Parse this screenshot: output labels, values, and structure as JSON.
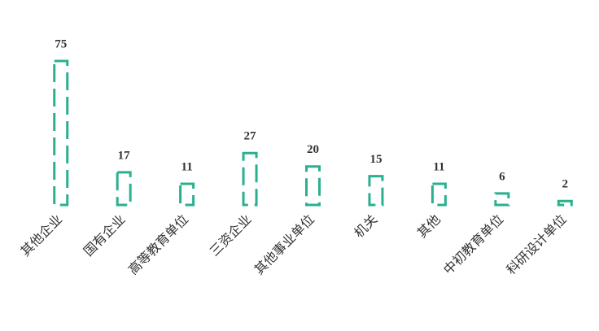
{
  "chart_data": {
    "type": "bar",
    "categories": [
      "其他企业",
      "国有企业",
      "高等教育单位",
      "三资企业",
      "其他事业单位",
      "机关",
      "其他",
      "中初教育单位",
      "科研设计单位"
    ],
    "values": [
      75,
      17,
      11,
      27,
      20,
      15,
      11,
      6,
      2
    ],
    "color": "#2bb08f",
    "ylim": [
      0,
      75
    ]
  }
}
